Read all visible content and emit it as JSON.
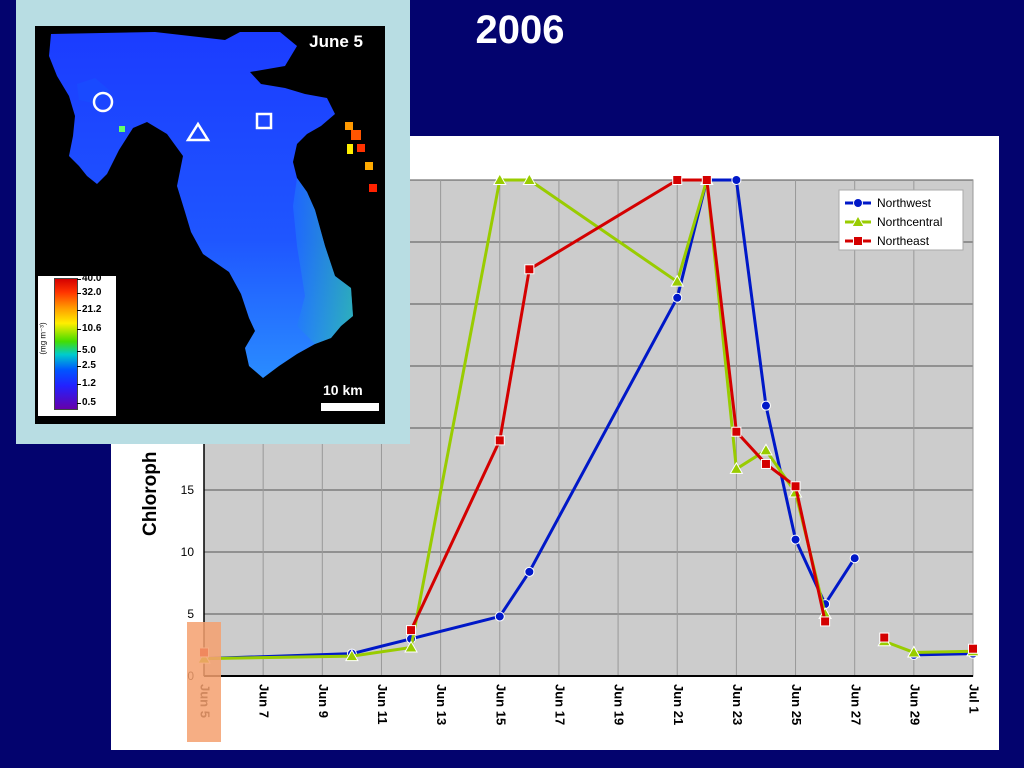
{
  "slide": {
    "title": "2006"
  },
  "map": {
    "date_label": "June 5",
    "scale_label": "10 km",
    "colorbar_unit": "(mg m⁻³)",
    "colorbar_ticks": [
      "40.0",
      "32.0",
      "21.2",
      "10.6",
      "5.0",
      "2.5",
      "1.2",
      "0.5"
    ],
    "markers": [
      {
        "shape": "circle",
        "series": "Northwest"
      },
      {
        "shape": "triangle",
        "series": "Northcentral"
      },
      {
        "shape": "square",
        "series": "Northeast"
      }
    ]
  },
  "chart_data": {
    "type": "line",
    "ylabel": "Chloroph",
    "xlabel": "",
    "x_ticks": [
      "Jun 5",
      "Jun 7",
      "Jun 9",
      "Jun 11",
      "Jun 13",
      "Jun 15",
      "Jun 17",
      "Jun 19",
      "Jun 21",
      "Jun 23",
      "Jun 25",
      "Jun 27",
      "Jun 29",
      "Jul 1"
    ],
    "x_tick_days": [
      5,
      7,
      9,
      11,
      13,
      15,
      17,
      19,
      21,
      23,
      25,
      27,
      29,
      31
    ],
    "x_range_days": [
      5,
      31
    ],
    "y_ticks": [
      0,
      5,
      10,
      15
    ],
    "ylim": [
      0,
      40
    ],
    "grid": true,
    "legend_position": "top-right",
    "highlighted_x_tick": "Jun 5",
    "series": [
      {
        "name": "Northwest",
        "color": "#0018c8",
        "marker": "circle",
        "segments": [
          [
            [
              5,
              1.4
            ],
            [
              10,
              1.8
            ],
            [
              12,
              3.0
            ],
            [
              15,
              4.8
            ],
            [
              16,
              8.4
            ],
            [
              21,
              30.5
            ],
            [
              22,
              40
            ],
            [
              23,
              40
            ],
            [
              24,
              21.8
            ],
            [
              25,
              11.0
            ],
            [
              26,
              5.8
            ],
            [
              27,
              9.5
            ]
          ],
          [
            [
              29,
              1.7
            ],
            [
              31,
              1.8
            ]
          ]
        ]
      },
      {
        "name": "Northcentral",
        "color": "#99cc00",
        "marker": "triangle",
        "segments": [
          [
            [
              5,
              1.4
            ],
            [
              10,
              1.6
            ],
            [
              12,
              2.3
            ],
            [
              15,
              40
            ],
            [
              16,
              40
            ],
            [
              21,
              31.8
            ],
            [
              22,
              40
            ],
            [
              23,
              16.7
            ],
            [
              24,
              18.2
            ],
            [
              25,
              14.8
            ],
            [
              26,
              5.0
            ]
          ],
          [
            [
              28,
              2.8
            ],
            [
              29,
              1.9
            ],
            [
              31,
              2.0
            ]
          ]
        ]
      },
      {
        "name": "Northeast",
        "color": "#d40000",
        "marker": "square",
        "segments": [
          [
            [
              5,
              1.9
            ]
          ],
          [
            [
              12,
              3.7
            ],
            [
              15,
              19.0
            ],
            [
              16,
              32.8
            ],
            [
              21,
              40
            ],
            [
              22,
              40
            ],
            [
              23,
              19.7
            ],
            [
              24,
              17.1
            ],
            [
              25,
              15.3
            ],
            [
              26,
              4.4
            ]
          ],
          [
            [
              28,
              3.1
            ]
          ],
          [
            [
              31,
              2.2
            ]
          ]
        ]
      }
    ]
  }
}
